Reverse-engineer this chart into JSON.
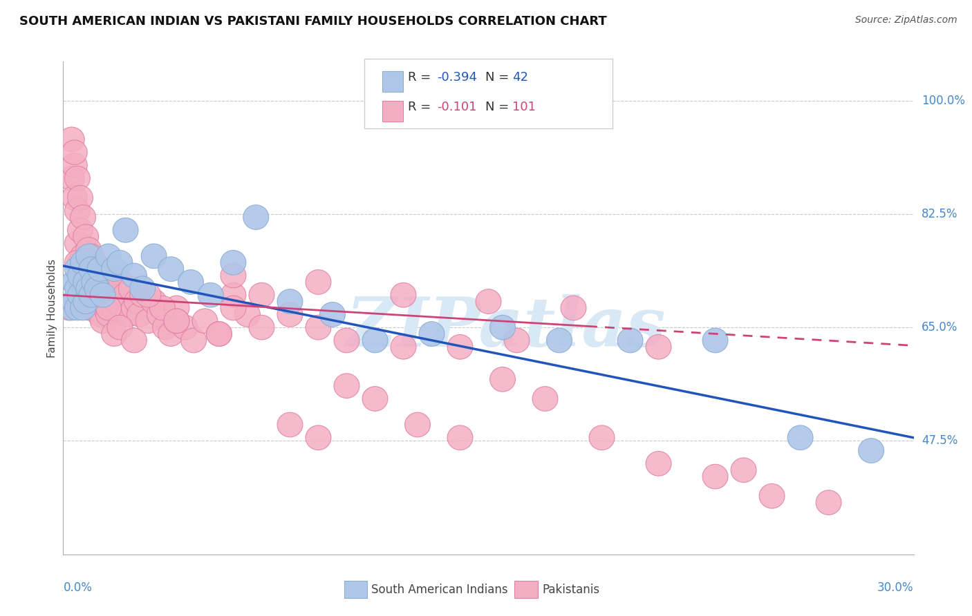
{
  "title": "SOUTH AMERICAN INDIAN VS PAKISTANI FAMILY HOUSEHOLDS CORRELATION CHART",
  "source": "Source: ZipAtlas.com",
  "ylabel": "Family Households",
  "y_tick_labels": [
    "100.0%",
    "82.5%",
    "65.0%",
    "47.5%"
  ],
  "y_tick_values": [
    1.0,
    0.825,
    0.65,
    0.475
  ],
  "x_min": 0.0,
  "x_max": 0.3,
  "y_min": 0.3,
  "y_max": 1.06,
  "blue_r": "-0.394",
  "blue_n": "42",
  "pink_r": "-0.101",
  "pink_n": "101",
  "blue_fill": "#aec6e8",
  "blue_edge": "#8aadd4",
  "blue_line": "#2255bb",
  "pink_fill": "#f4aec4",
  "pink_edge": "#e080a0",
  "pink_line": "#cc4477",
  "watermark_color": "#d8e8f4",
  "grid_color": "#c8c8c8",
  "tick_label_color": "#4488cc",
  "title_color": "#111111",
  "source_color": "#555555",
  "legend_text_color": "#444444",
  "blue_legend_val_color": "#2255bb",
  "pink_legend_val_color": "#cc4477",
  "blue_scatter_x": [
    0.003,
    0.004,
    0.004,
    0.005,
    0.005,
    0.005,
    0.006,
    0.006,
    0.007,
    0.007,
    0.008,
    0.008,
    0.009,
    0.009,
    0.01,
    0.01,
    0.011,
    0.012,
    0.013,
    0.014,
    0.016,
    0.018,
    0.02,
    0.022,
    0.025,
    0.028,
    0.032,
    0.038,
    0.045,
    0.052,
    0.06,
    0.068,
    0.08,
    0.095,
    0.11,
    0.13,
    0.155,
    0.175,
    0.2,
    0.23,
    0.26,
    0.285
  ],
  "blue_scatter_y": [
    0.68,
    0.72,
    0.69,
    0.71,
    0.68,
    0.74,
    0.7,
    0.73,
    0.75,
    0.68,
    0.72,
    0.69,
    0.76,
    0.71,
    0.74,
    0.7,
    0.72,
    0.71,
    0.74,
    0.7,
    0.76,
    0.74,
    0.75,
    0.8,
    0.73,
    0.71,
    0.76,
    0.74,
    0.72,
    0.7,
    0.75,
    0.82,
    0.69,
    0.67,
    0.63,
    0.64,
    0.65,
    0.63,
    0.63,
    0.63,
    0.48,
    0.46
  ],
  "pink_scatter_x": [
    0.002,
    0.003,
    0.003,
    0.004,
    0.004,
    0.004,
    0.005,
    0.005,
    0.005,
    0.006,
    0.006,
    0.006,
    0.007,
    0.007,
    0.007,
    0.008,
    0.008,
    0.008,
    0.009,
    0.009,
    0.009,
    0.01,
    0.01,
    0.01,
    0.011,
    0.011,
    0.012,
    0.012,
    0.013,
    0.013,
    0.014,
    0.014,
    0.015,
    0.015,
    0.016,
    0.016,
    0.017,
    0.018,
    0.018,
    0.019,
    0.02,
    0.021,
    0.022,
    0.023,
    0.024,
    0.025,
    0.026,
    0.027,
    0.028,
    0.03,
    0.032,
    0.034,
    0.036,
    0.038,
    0.04,
    0.043,
    0.046,
    0.05,
    0.055,
    0.06,
    0.065,
    0.07,
    0.08,
    0.09,
    0.1,
    0.11,
    0.125,
    0.14,
    0.155,
    0.17,
    0.19,
    0.21,
    0.23,
    0.25,
    0.04,
    0.06,
    0.08,
    0.1,
    0.12,
    0.14,
    0.16,
    0.035,
    0.06,
    0.09,
    0.12,
    0.15,
    0.18,
    0.21,
    0.24,
    0.27,
    0.005,
    0.008,
    0.012,
    0.016,
    0.02,
    0.025,
    0.03,
    0.04,
    0.055,
    0.07,
    0.09
  ],
  "pink_scatter_y": [
    0.68,
    0.94,
    0.88,
    0.9,
    0.85,
    0.92,
    0.88,
    0.83,
    0.78,
    0.85,
    0.8,
    0.75,
    0.82,
    0.76,
    0.72,
    0.79,
    0.74,
    0.7,
    0.77,
    0.72,
    0.68,
    0.76,
    0.72,
    0.68,
    0.75,
    0.7,
    0.73,
    0.68,
    0.72,
    0.67,
    0.7,
    0.66,
    0.72,
    0.68,
    0.71,
    0.67,
    0.7,
    0.68,
    0.64,
    0.69,
    0.72,
    0.68,
    0.7,
    0.67,
    0.71,
    0.68,
    0.69,
    0.67,
    0.7,
    0.66,
    0.69,
    0.67,
    0.65,
    0.64,
    0.68,
    0.65,
    0.63,
    0.66,
    0.64,
    0.7,
    0.67,
    0.65,
    0.5,
    0.48,
    0.56,
    0.54,
    0.5,
    0.48,
    0.57,
    0.54,
    0.48,
    0.44,
    0.42,
    0.39,
    0.66,
    0.68,
    0.67,
    0.63,
    0.62,
    0.62,
    0.63,
    0.68,
    0.73,
    0.72,
    0.7,
    0.69,
    0.68,
    0.62,
    0.43,
    0.38,
    0.75,
    0.72,
    0.7,
    0.68,
    0.65,
    0.63,
    0.7,
    0.66,
    0.64,
    0.7,
    0.65
  ],
  "blue_line_x0": 0.0,
  "blue_line_x1": 0.3,
  "blue_line_y0": 0.745,
  "blue_line_y1": 0.48,
  "pink_line_x0": 0.0,
  "pink_line_x1": 0.3,
  "pink_line_y0": 0.7,
  "pink_line_y1": 0.622,
  "pink_dash_split": 0.185
}
